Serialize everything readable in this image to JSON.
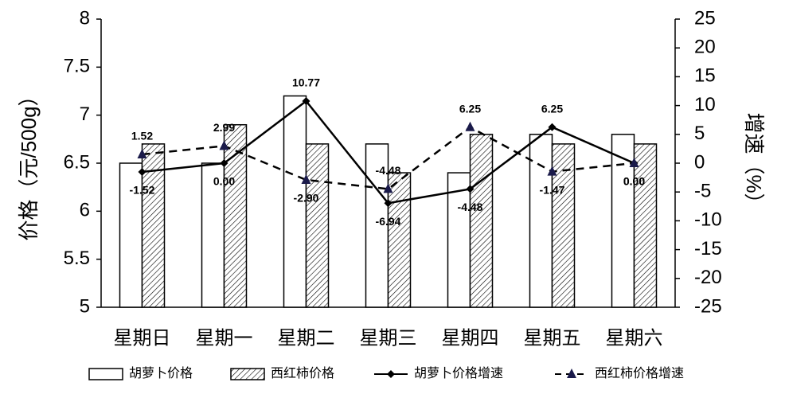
{
  "chart_data": {
    "type": "bar",
    "categories": [
      "星期日",
      "星期一",
      "星期二",
      "星期三",
      "星期四",
      "星期五",
      "星期六"
    ],
    "ylabel": "价格（元/500g）",
    "y2label": "增速（%）",
    "ylim": [
      5,
      8
    ],
    "yticks": [
      5,
      5.5,
      6,
      6.5,
      7,
      7.5,
      8
    ],
    "y2lim": [
      -25,
      25
    ],
    "y2ticks": [
      -25,
      -20,
      -15,
      -10,
      -5,
      0,
      5,
      10,
      15,
      20,
      25
    ],
    "legend": "bottom",
    "series": [
      {
        "name": "胡萝卜价格",
        "type": "bar",
        "color": "#ffffff",
        "values": [
          6.5,
          6.5,
          7.2,
          6.7,
          6.4,
          6.8,
          6.8
        ]
      },
      {
        "name": "西红柿价格",
        "type": "bar",
        "color": "#ffffff",
        "hatch": true,
        "values": [
          6.7,
          6.9,
          6.7,
          6.4,
          6.8,
          6.7,
          6.7
        ]
      },
      {
        "name": "胡萝卜价格增速",
        "type": "line",
        "axis": "y2",
        "color": "#000000",
        "marker": "diamond",
        "dashed": false,
        "values": [
          -1.52,
          0.0,
          10.77,
          -6.94,
          -4.48,
          6.25,
          0.0
        ],
        "value_labels": [
          "-1.52",
          "0.00",
          "10.77",
          "-6.94",
          "-4.48",
          "6.25",
          "0.00"
        ]
      },
      {
        "name": "西红柿价格增速",
        "type": "line",
        "axis": "y2",
        "color": "#000000",
        "marker": "triangle",
        "dashed": true,
        "values": [
          1.52,
          2.99,
          -2.9,
          -4.48,
          6.25,
          -1.47,
          0.0
        ],
        "value_labels": [
          "1.52",
          "2.99",
          "-2.90",
          "-4.48",
          "6.25",
          "-1.47",
          "0.00"
        ]
      }
    ]
  }
}
